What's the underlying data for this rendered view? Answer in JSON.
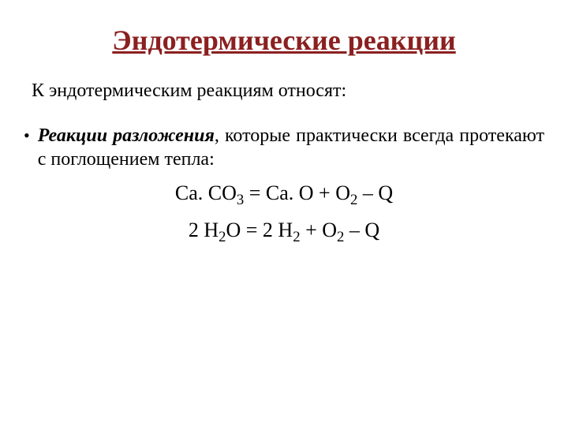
{
  "title": {
    "text": "Эндотермические реакции",
    "color": "#8b2020"
  },
  "intro": "К эндотермическим реакциям относят:",
  "bullet": {
    "term": "Реакции разложения",
    "rest": ", которые практически всегда протекают с поглощением тепла:"
  },
  "eq1": {
    "part1": "Ca. CO",
    "sub1": "3",
    "part2": " = Ca. O + O",
    "sub2": "2",
    "part3": " – Q"
  },
  "eq2": {
    "part1": "2 H",
    "sub1": "2",
    "part2": "O = 2 H",
    "sub2": "2",
    "part3": " + O",
    "sub3": "2",
    "part4": " – Q"
  }
}
